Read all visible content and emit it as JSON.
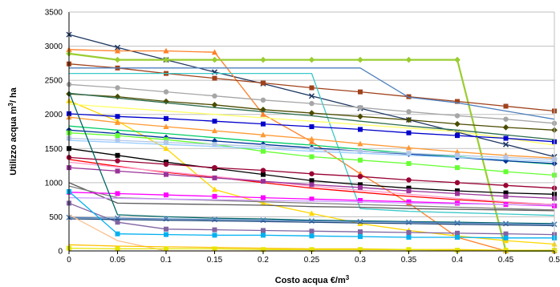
{
  "chart_data": {
    "type": "line",
    "title": "",
    "xlabel": "Costo acqua €/m",
    "xlabel_sup": "3",
    "ylabel": "Utilizzo acqua m",
    "ylabel_sup": "3",
    "ylabel_suffix": "/ ha",
    "x": [
      0,
      0.05,
      0.1,
      0.15,
      0.2,
      0.25,
      0.3,
      0.35,
      0.4,
      0.45,
      0.5
    ],
    "x_tick_labels": [
      "0",
      "0.05",
      "0.1",
      "0.15",
      "0.2",
      "0.25",
      "0.3",
      "0.35",
      "0.4",
      "0.45",
      "0.5"
    ],
    "xlim": [
      0,
      0.5
    ],
    "ylim": [
      0,
      3500
    ],
    "y_ticks": [
      0,
      500,
      1000,
      1500,
      2000,
      2500,
      3000,
      3500
    ],
    "grid": "horizontal",
    "legend": "none",
    "series": [
      {
        "color": "#1f3864",
        "marker": "cross",
        "values": [
          3170,
          2980,
          2800,
          2620,
          2450,
          2270,
          2090,
          1920,
          1740,
          1560,
          1380
        ]
      },
      {
        "color": "#ff7f27",
        "marker": "triangle",
        "values": [
          2950,
          2930,
          2930,
          2910,
          2000,
          1600,
          1130,
          700,
          200,
          0,
          0
        ]
      },
      {
        "color": "#9acd32",
        "marker": "diamond",
        "values": [
          2890,
          2800,
          2800,
          2800,
          2800,
          2800,
          2800,
          2800,
          2800,
          0,
          0
        ]
      },
      {
        "color": "#a0421c",
        "marker": "square",
        "values": [
          2740,
          2680,
          2600,
          2530,
          2460,
          2390,
          2330,
          2260,
          2190,
          2120,
          2050
        ]
      },
      {
        "color": "#4f81bd",
        "marker": "none",
        "values": [
          2680,
          2680,
          2680,
          2680,
          2680,
          2680,
          2680,
          2250,
          2170,
          2050,
          1930
        ]
      },
      {
        "color": "#3cc8c8",
        "marker": "none",
        "values": [
          2600,
          2600,
          2600,
          2600,
          2600,
          2600,
          620,
          580,
          560,
          540,
          520
        ]
      },
      {
        "color": "#a6a6a6",
        "marker": "circle",
        "values": [
          2440,
          2390,
          2330,
          2270,
          2210,
          2160,
          2100,
          2040,
          1980,
          1930,
          1870
        ]
      },
      {
        "color": "#4b4b00",
        "marker": "diamond",
        "values": [
          2300,
          2260,
          2190,
          2140,
          2070,
          2020,
          1970,
          1920,
          1860,
          1810,
          1770
        ]
      },
      {
        "color": "#ffd700",
        "marker": "triangle",
        "values": [
          2200,
          1900,
          1500,
          900,
          700,
          550,
          400,
          300,
          220,
          150,
          100
        ]
      },
      {
        "color": "#ffff66",
        "marker": "none",
        "values": [
          2150,
          2100,
          2050,
          2000,
          1950,
          1900,
          1850,
          1800,
          1750,
          1650,
          1550
        ]
      },
      {
        "color": "#0000cc",
        "marker": "square",
        "values": [
          2010,
          1970,
          1940,
          1900,
          1860,
          1820,
          1780,
          1730,
          1690,
          1650,
          1600
        ]
      },
      {
        "color": "#ff9933",
        "marker": "triangle",
        "values": [
          1960,
          1880,
          1820,
          1760,
          1700,
          1640,
          1570,
          1510,
          1450,
          1400,
          1360
        ]
      },
      {
        "color": "#2f6e50",
        "marker": "none",
        "values": [
          2310,
          2240,
          2170,
          2100,
          2040,
          1980,
          1900,
          1830,
          1770,
          1700,
          1630
        ]
      },
      {
        "color": "#00cc66",
        "marker": "none",
        "values": [
          1830,
          1770,
          1720,
          1660,
          1600,
          1550,
          1490,
          1430,
          1380,
          1320,
          1270
        ]
      },
      {
        "color": "#003399",
        "marker": "diamond",
        "values": [
          1770,
          1720,
          1660,
          1610,
          1560,
          1510,
          1460,
          1420,
          1370,
          1320,
          1280
        ]
      },
      {
        "color": "#66ff33",
        "marker": "square",
        "values": [
          1730,
          1690,
          1630,
          1560,
          1460,
          1380,
          1330,
          1280,
          1220,
          1160,
          1110
        ]
      },
      {
        "color": "#b3c6e7",
        "marker": "square",
        "values": [
          1650,
          1620,
          1590,
          1560,
          1530,
          1490,
          1460,
          1430,
          1400,
          1370,
          1340
        ]
      },
      {
        "color": "#99ccff",
        "marker": "none",
        "values": [
          1620,
          1590,
          1560,
          1530,
          1500,
          1460,
          1430,
          1400,
          1370,
          1340,
          1310
        ]
      },
      {
        "color": "#000000",
        "marker": "square",
        "values": [
          1500,
          1400,
          1300,
          1210,
          1120,
          1030,
          970,
          920,
          880,
          850,
          830
        ]
      },
      {
        "color": "#990033",
        "marker": "circle",
        "values": [
          1370,
          1320,
          1270,
          1220,
          1180,
          1130,
          1090,
          1040,
          1000,
          960,
          920
        ]
      },
      {
        "color": "#ff0000",
        "marker": "none",
        "values": [
          1340,
          1240,
          1150,
          1080,
          1000,
          920,
          860,
          800,
          750,
          710,
          680
        ]
      },
      {
        "color": "#ff99cc",
        "marker": "none",
        "values": [
          1300,
          1230,
          1160,
          1090,
          1020,
          950,
          890,
          830,
          770,
          720,
          680
        ]
      },
      {
        "color": "#993399",
        "marker": "square",
        "values": [
          1220,
          1170,
          1120,
          1070,
          1020,
          970,
          930,
          880,
          840,
          800,
          770
        ]
      },
      {
        "color": "#5a5a5a",
        "marker": "none",
        "values": [
          1000,
          700,
          690,
          680,
          670,
          650,
          640,
          620,
          610,
          600,
          590
        ]
      },
      {
        "color": "#7f7f7f",
        "marker": "none",
        "values": [
          950,
          780,
          760,
          740,
          720,
          700,
          680,
          660,
          640,
          620,
          600
        ]
      },
      {
        "color": "#ff00ff",
        "marker": "square",
        "values": [
          860,
          840,
          820,
          800,
          780,
          760,
          740,
          720,
          700,
          680,
          660
        ]
      },
      {
        "color": "#cc99ff",
        "marker": "none",
        "values": [
          780,
          770,
          760,
          750,
          740,
          730,
          720,
          700,
          690,
          680,
          670
        ]
      },
      {
        "color": "#006666",
        "marker": "none",
        "values": [
          2330,
          530,
          500,
          480,
          470,
          450,
          440,
          430,
          420,
          410,
          400
        ]
      },
      {
        "color": "#8064a2",
        "marker": "square",
        "values": [
          700,
          420,
          320,
          310,
          300,
          290,
          280,
          270,
          260,
          250,
          240
        ]
      },
      {
        "color": "#4a7ebb",
        "marker": "cross",
        "values": [
          490,
          480,
          470,
          460,
          450,
          440,
          430,
          420,
          410,
          400,
          390
        ]
      },
      {
        "color": "#1f497d",
        "marker": "none",
        "values": [
          470,
          460,
          450,
          440,
          430,
          420,
          410,
          400,
          390,
          380,
          370
        ]
      },
      {
        "color": "#00b0f0",
        "marker": "square",
        "values": [
          870,
          250,
          240,
          230,
          230,
          220,
          210,
          200,
          200,
          190,
          190
        ]
      },
      {
        "color": "#fac090",
        "marker": "none",
        "values": [
          530,
          150,
          0,
          0,
          0,
          0,
          0,
          0,
          0,
          0,
          0
        ]
      },
      {
        "color": "#ffc000",
        "marker": "none",
        "values": [
          90,
          70,
          60,
          50,
          40,
          30,
          30,
          20,
          20,
          10,
          10
        ]
      },
      {
        "color": "#e5e500",
        "marker": "square",
        "values": [
          40,
          30,
          30,
          30,
          20,
          20,
          20,
          20,
          10,
          10,
          10
        ]
      }
    ]
  }
}
